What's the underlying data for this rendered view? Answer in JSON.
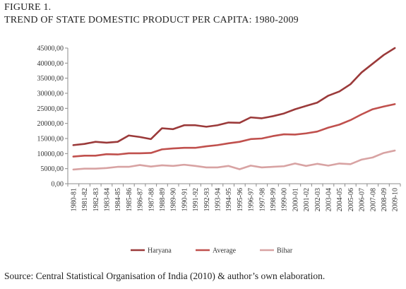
{
  "figure_label": "FIGURE 1.",
  "figure_title": "TREND OF STATE DOMESTIC PRODUCT PER CAPITA: 1980-2009",
  "source_note": "Source: Central Statistical Organisation of India (2010) & author’s own elaboration.",
  "chart_data": {
    "type": "line",
    "title": "",
    "xlabel": "",
    "ylabel": "",
    "ylim": [
      0,
      45000
    ],
    "y_ticks": [
      0,
      5000,
      10000,
      15000,
      20000,
      25000,
      30000,
      35000,
      40000,
      45000
    ],
    "y_tick_labels": [
      "0,00",
      "5000,00",
      "10000,00",
      "15000,00",
      "20000,00",
      "25000,00",
      "30000,00",
      "35000,00",
      "40000,00",
      "45000,00"
    ],
    "grid": false,
    "legend_position": "bottom",
    "categories": [
      "1980-81",
      "1981-82",
      "1982-83",
      "1983-84",
      "1984-85",
      "1985-86",
      "1986-87",
      "1987-88",
      "1988-89",
      "1989-90",
      "1990-91",
      "1991-92",
      "1992-93",
      "1993-94",
      "1994-95",
      "1995-96",
      "1996-97",
      "1997-98",
      "1998-99",
      "1999-00",
      "2000-01",
      "2001-02",
      "2002-03",
      "2003-04",
      "2004-05",
      "2005-06",
      "2006-07",
      "2007-08",
      "2008-09",
      "2009-10"
    ],
    "series": [
      {
        "name": "Haryana",
        "color": "#9b3a3a",
        "values": [
          12800,
          13200,
          13900,
          13600,
          13900,
          16000,
          15500,
          14800,
          18400,
          18100,
          19400,
          19400,
          18900,
          19400,
          20300,
          20200,
          22000,
          21700,
          22400,
          23300,
          24700,
          25800,
          26900,
          29200,
          30600,
          33000,
          36900,
          39800,
          42700,
          45000
        ]
      },
      {
        "name": "Average",
        "color": "#c0504d",
        "values": [
          9000,
          9300,
          9300,
          9800,
          9700,
          10100,
          10100,
          10200,
          11400,
          11700,
          11900,
          11900,
          12400,
          12800,
          13400,
          13900,
          14800,
          15000,
          15800,
          16400,
          16300,
          16700,
          17300,
          18600,
          19600,
          21100,
          23000,
          24700,
          25600,
          26400
        ]
      },
      {
        "name": "Bihar",
        "color": "#d8a3a3",
        "values": [
          4700,
          5000,
          5000,
          5200,
          5600,
          5600,
          6200,
          5700,
          6100,
          5900,
          6300,
          5900,
          5400,
          5400,
          5900,
          4800,
          6000,
          5400,
          5600,
          5800,
          6700,
          5900,
          6600,
          6000,
          6700,
          6500,
          8000,
          8700,
          10200,
          11000
        ]
      }
    ]
  }
}
